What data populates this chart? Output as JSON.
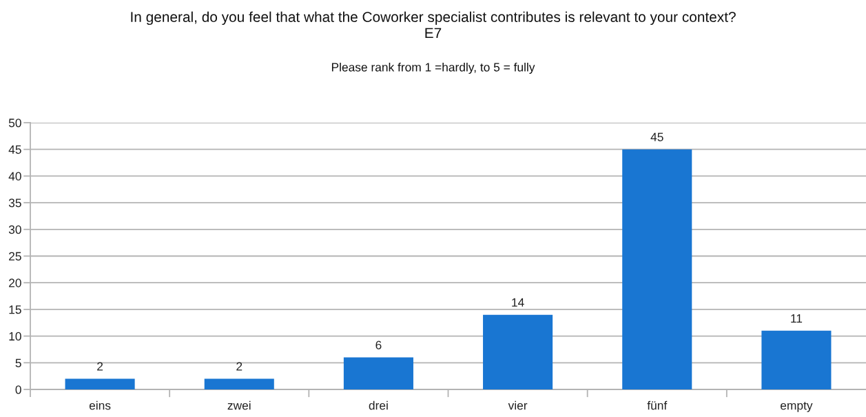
{
  "chart_data": {
    "type": "bar",
    "title": "In general, do you feel that what the Coworker specialist contributes is relevant to your context?\nE7",
    "subtitle": "Please rank from 1 =hardly, to 5 = fully",
    "categories": [
      "eins",
      "zwei",
      "drei",
      "vier",
      "fünf",
      "empty"
    ],
    "values": [
      2,
      2,
      6,
      14,
      45,
      11
    ],
    "color": "#1976d2",
    "ylim": [
      0,
      50
    ],
    "yticks": [
      0,
      5,
      10,
      15,
      20,
      25,
      30,
      35,
      40,
      45,
      50
    ],
    "grid": "y",
    "data_labels": true,
    "legend": false
  }
}
